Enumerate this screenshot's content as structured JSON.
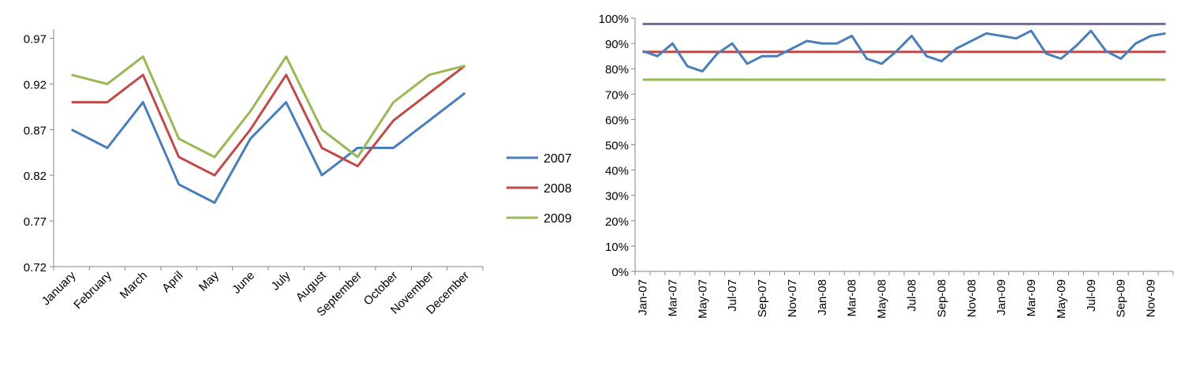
{
  "chart_data": [
    {
      "type": "line",
      "title": "",
      "xlabel": "",
      "ylabel": "",
      "categories": [
        "January",
        "February",
        "March",
        "April",
        "May",
        "June",
        "July",
        "August",
        "September",
        "October",
        "November",
        "December"
      ],
      "yticks": [
        "0.72",
        "0.77",
        "0.82",
        "0.87",
        "0.92",
        "0.97"
      ],
      "ylim": [
        0.72,
        0.98
      ],
      "grid": false,
      "legend": "right",
      "series": [
        {
          "name": "2007",
          "color": "#4A7EBB",
          "values": [
            0.87,
            0.85,
            0.9,
            0.81,
            0.79,
            0.86,
            0.9,
            0.82,
            0.85,
            0.85,
            0.88,
            0.91
          ]
        },
        {
          "name": "2008",
          "color": "#BE4B48",
          "values": [
            0.9,
            0.9,
            0.93,
            0.84,
            0.82,
            0.87,
            0.93,
            0.85,
            0.83,
            0.88,
            0.91,
            0.94
          ]
        },
        {
          "name": "2009",
          "color": "#98B954",
          "values": [
            0.93,
            0.92,
            0.95,
            0.86,
            0.84,
            0.89,
            0.95,
            0.87,
            0.84,
            0.9,
            0.93,
            0.94
          ]
        }
      ]
    },
    {
      "type": "line",
      "title": "",
      "xlabel": "",
      "ylabel": "",
      "categories": [
        "Jan-07",
        "Feb-07",
        "Mar-07",
        "Apr-07",
        "May-07",
        "Jun-07",
        "Jul-07",
        "Aug-07",
        "Sep-07",
        "Oct-07",
        "Nov-07",
        "Dec-07",
        "Jan-08",
        "Feb-08",
        "Mar-08",
        "Apr-08",
        "May-08",
        "Jun-08",
        "Jul-08",
        "Aug-08",
        "Sep-08",
        "Oct-08",
        "Nov-08",
        "Dec-08",
        "Jan-09",
        "Feb-09",
        "Mar-09",
        "Apr-09",
        "May-09",
        "Jun-09",
        "Jul-09",
        "Aug-09",
        "Sep-09",
        "Oct-09",
        "Nov-09",
        "Dec-09"
      ],
      "xticks": [
        "Jan-07",
        "Mar-07",
        "May-07",
        "Jul-07",
        "Sep-07",
        "Nov-07",
        "Jan-08",
        "Mar-08",
        "May-08",
        "Jul-08",
        "Sep-08",
        "Nov-08",
        "Jan-09",
        "Mar-09",
        "May-09",
        "Jul-09",
        "Sep-09",
        "Nov-09"
      ],
      "yticks": [
        "0%",
        "10%",
        "20%",
        "30%",
        "40%",
        "50%",
        "60%",
        "70%",
        "80%",
        "90%",
        "100%"
      ],
      "ylim": [
        0,
        1.0
      ],
      "grid": false,
      "legend": "none",
      "series": [
        {
          "color": "#4A7EBB",
          "values": [
            0.87,
            0.85,
            0.9,
            0.81,
            0.79,
            0.86,
            0.9,
            0.82,
            0.85,
            0.85,
            0.88,
            0.91,
            0.9,
            0.9,
            0.93,
            0.84,
            0.82,
            0.87,
            0.93,
            0.85,
            0.83,
            0.88,
            0.91,
            0.94,
            0.93,
            0.92,
            0.95,
            0.86,
            0.84,
            0.89,
            0.95,
            0.87,
            0.84,
            0.9,
            0.93,
            0.94
          ]
        },
        {
          "color": "#7E649E",
          "values": [
            0.977,
            0.977,
            0.977,
            0.977,
            0.977,
            0.977,
            0.977,
            0.977,
            0.977,
            0.977,
            0.977,
            0.977,
            0.977,
            0.977,
            0.977,
            0.977,
            0.977,
            0.977,
            0.977,
            0.977,
            0.977,
            0.977,
            0.977,
            0.977,
            0.977,
            0.977,
            0.977,
            0.977,
            0.977,
            0.977,
            0.977,
            0.977,
            0.977,
            0.977,
            0.977,
            0.977
          ]
        },
        {
          "color": "#BE4B48",
          "values": [
            0.867,
            0.867,
            0.867,
            0.867,
            0.867,
            0.867,
            0.867,
            0.867,
            0.867,
            0.867,
            0.867,
            0.867,
            0.867,
            0.867,
            0.867,
            0.867,
            0.867,
            0.867,
            0.867,
            0.867,
            0.867,
            0.867,
            0.867,
            0.867,
            0.867,
            0.867,
            0.867,
            0.867,
            0.867,
            0.867,
            0.867,
            0.867,
            0.867,
            0.867,
            0.867,
            0.867
          ]
        },
        {
          "color": "#98B954",
          "values": [
            0.757,
            0.757,
            0.757,
            0.757,
            0.757,
            0.757,
            0.757,
            0.757,
            0.757,
            0.757,
            0.757,
            0.757,
            0.757,
            0.757,
            0.757,
            0.757,
            0.757,
            0.757,
            0.757,
            0.757,
            0.757,
            0.757,
            0.757,
            0.757,
            0.757,
            0.757,
            0.757,
            0.757,
            0.757,
            0.757,
            0.757,
            0.757,
            0.757,
            0.757,
            0.757,
            0.757
          ]
        }
      ]
    }
  ]
}
